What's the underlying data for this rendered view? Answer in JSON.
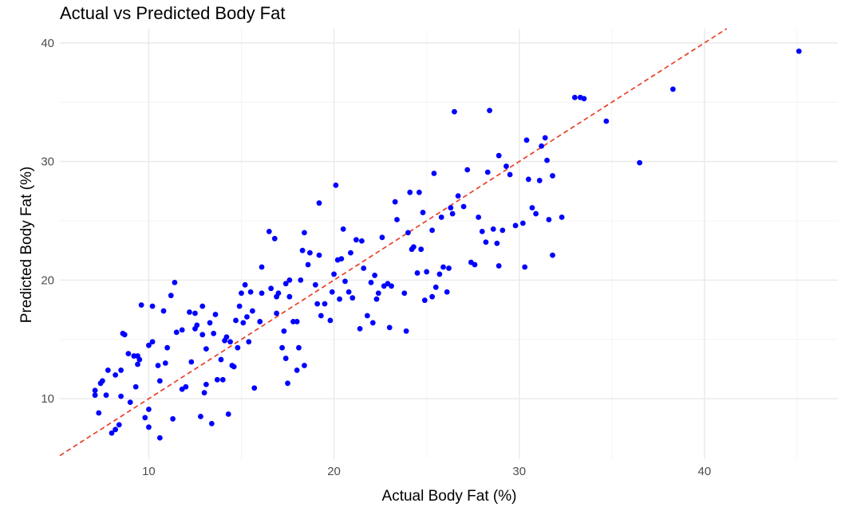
{
  "chart_data": {
    "type": "scatter",
    "title": "Actual vs Predicted Body Fat",
    "xlabel": "Actual Body Fat (%)",
    "ylabel": "Predicted Body Fat (%)",
    "xlim": [
      5.2,
      47.2
    ],
    "ylim": [
      4.9,
      41.2
    ],
    "xticks": [
      10,
      20,
      30,
      40
    ],
    "yticks": [
      10,
      20,
      30,
      40
    ],
    "grid": true,
    "point_color": "#0000ff",
    "reference_line": {
      "style": "dashed",
      "color": "#e8402a",
      "slope": 1,
      "intercept": 0
    },
    "points": [
      [
        7.1,
        10.3
      ],
      [
        7.1,
        10.7
      ],
      [
        7.3,
        8.8
      ],
      [
        7.4,
        11.3
      ],
      [
        7.5,
        11.5
      ],
      [
        7.7,
        10.3
      ],
      [
        7.8,
        12.4
      ],
      [
        8.0,
        7.1
      ],
      [
        8.2,
        7.4
      ],
      [
        8.2,
        12.0
      ],
      [
        8.4,
        7.8
      ],
      [
        8.5,
        12.4
      ],
      [
        8.5,
        10.2
      ],
      [
        8.6,
        15.5
      ],
      [
        8.7,
        15.4
      ],
      [
        8.9,
        13.8
      ],
      [
        9.0,
        9.7
      ],
      [
        9.2,
        13.6
      ],
      [
        9.3,
        11.0
      ],
      [
        9.4,
        12.9
      ],
      [
        9.4,
        13.6
      ],
      [
        9.5,
        13.3
      ],
      [
        9.6,
        17.9
      ],
      [
        9.8,
        8.4
      ],
      [
        10.0,
        14.5
      ],
      [
        10.0,
        9.1
      ],
      [
        10.0,
        7.6
      ],
      [
        10.2,
        14.8
      ],
      [
        10.2,
        17.8
      ],
      [
        10.5,
        12.8
      ],
      [
        10.6,
        6.7
      ],
      [
        10.6,
        11.5
      ],
      [
        10.8,
        17.4
      ],
      [
        10.9,
        13.0
      ],
      [
        11.0,
        14.3
      ],
      [
        11.2,
        18.7
      ],
      [
        11.3,
        8.3
      ],
      [
        11.4,
        19.8
      ],
      [
        11.5,
        15.6
      ],
      [
        11.8,
        10.8
      ],
      [
        11.8,
        15.8
      ],
      [
        12.0,
        11.0
      ],
      [
        12.2,
        17.3
      ],
      [
        12.3,
        13.1
      ],
      [
        12.5,
        15.9
      ],
      [
        12.5,
        17.2
      ],
      [
        12.6,
        16.2
      ],
      [
        12.8,
        8.5
      ],
      [
        12.9,
        17.8
      ],
      [
        12.9,
        15.4
      ],
      [
        13.0,
        10.5
      ],
      [
        13.1,
        14.2
      ],
      [
        13.1,
        11.2
      ],
      [
        13.3,
        16.4
      ],
      [
        13.4,
        7.9
      ],
      [
        13.5,
        15.5
      ],
      [
        13.6,
        17.1
      ],
      [
        13.7,
        11.6
      ],
      [
        13.9,
        13.3
      ],
      [
        14.0,
        11.6
      ],
      [
        14.1,
        14.9
      ],
      [
        14.2,
        15.2
      ],
      [
        14.3,
        8.7
      ],
      [
        14.4,
        14.8
      ],
      [
        14.5,
        12.8
      ],
      [
        14.6,
        12.7
      ],
      [
        14.7,
        16.6
      ],
      [
        14.8,
        14.3
      ],
      [
        14.9,
        17.8
      ],
      [
        15.0,
        18.9
      ],
      [
        15.1,
        16.4
      ],
      [
        15.2,
        19.6
      ],
      [
        15.3,
        16.9
      ],
      [
        15.4,
        14.8
      ],
      [
        15.5,
        19.0
      ],
      [
        15.6,
        17.4
      ],
      [
        15.7,
        10.9
      ],
      [
        16.0,
        16.5
      ],
      [
        16.1,
        18.9
      ],
      [
        16.1,
        21.1
      ],
      [
        16.5,
        24.1
      ],
      [
        16.6,
        19.3
      ],
      [
        16.8,
        23.5
      ],
      [
        16.9,
        17.2
      ],
      [
        16.9,
        18.6
      ],
      [
        17.0,
        18.9
      ],
      [
        17.2,
        14.3
      ],
      [
        17.3,
        15.7
      ],
      [
        17.4,
        19.7
      ],
      [
        17.4,
        13.4
      ],
      [
        17.5,
        11.3
      ],
      [
        17.6,
        20.0
      ],
      [
        17.6,
        18.6
      ],
      [
        17.8,
        16.5
      ],
      [
        18.0,
        12.4
      ],
      [
        18.0,
        16.5
      ],
      [
        18.1,
        14.3
      ],
      [
        18.2,
        20.0
      ],
      [
        18.3,
        22.5
      ],
      [
        18.4,
        24.0
      ],
      [
        18.4,
        12.8
      ],
      [
        18.6,
        21.3
      ],
      [
        18.7,
        22.3
      ],
      [
        19.0,
        19.6
      ],
      [
        19.1,
        18.0
      ],
      [
        19.2,
        26.5
      ],
      [
        19.2,
        22.1
      ],
      [
        19.3,
        17.0
      ],
      [
        19.5,
        18.0
      ],
      [
        19.8,
        16.6
      ],
      [
        19.9,
        19.0
      ],
      [
        20.0,
        20.5
      ],
      [
        20.1,
        28.0
      ],
      [
        20.2,
        21.7
      ],
      [
        20.3,
        18.4
      ],
      [
        20.4,
        21.8
      ],
      [
        20.5,
        24.3
      ],
      [
        20.6,
        19.9
      ],
      [
        20.8,
        19.0
      ],
      [
        20.9,
        22.3
      ],
      [
        21.0,
        18.5
      ],
      [
        21.2,
        23.4
      ],
      [
        21.4,
        15.9
      ],
      [
        21.5,
        23.3
      ],
      [
        21.6,
        21.0
      ],
      [
        21.8,
        17.0
      ],
      [
        22.0,
        19.8
      ],
      [
        22.1,
        16.4
      ],
      [
        22.2,
        20.4
      ],
      [
        22.3,
        18.4
      ],
      [
        22.4,
        18.9
      ],
      [
        22.6,
        23.6
      ],
      [
        22.7,
        19.5
      ],
      [
        22.9,
        19.7
      ],
      [
        23.0,
        16.0
      ],
      [
        23.1,
        19.5
      ],
      [
        23.3,
        26.6
      ],
      [
        23.4,
        25.1
      ],
      [
        23.8,
        18.9
      ],
      [
        23.9,
        15.7
      ],
      [
        24.0,
        24.0
      ],
      [
        24.1,
        27.4
      ],
      [
        24.2,
        22.6
      ],
      [
        24.3,
        22.8
      ],
      [
        24.5,
        20.6
      ],
      [
        24.6,
        27.4
      ],
      [
        24.7,
        22.6
      ],
      [
        24.8,
        25.7
      ],
      [
        24.9,
        18.3
      ],
      [
        25.0,
        20.7
      ],
      [
        25.3,
        18.6
      ],
      [
        25.3,
        24.2
      ],
      [
        25.4,
        29.0
      ],
      [
        25.5,
        19.4
      ],
      [
        25.7,
        20.5
      ],
      [
        25.8,
        25.3
      ],
      [
        25.9,
        21.1
      ],
      [
        26.1,
        19.0
      ],
      [
        26.2,
        21.0
      ],
      [
        26.3,
        26.1
      ],
      [
        26.4,
        25.6
      ],
      [
        26.5,
        34.2
      ],
      [
        26.7,
        27.1
      ],
      [
        27.0,
        26.2
      ],
      [
        27.2,
        29.3
      ],
      [
        27.4,
        21.5
      ],
      [
        27.6,
        21.3
      ],
      [
        27.8,
        25.3
      ],
      [
        28.0,
        24.1
      ],
      [
        28.2,
        23.2
      ],
      [
        28.3,
        29.1
      ],
      [
        28.4,
        34.3
      ],
      [
        28.6,
        24.3
      ],
      [
        28.8,
        23.1
      ],
      [
        28.9,
        30.5
      ],
      [
        28.9,
        21.2
      ],
      [
        29.1,
        24.2
      ],
      [
        29.3,
        29.6
      ],
      [
        29.5,
        28.9
      ],
      [
        29.8,
        24.6
      ],
      [
        30.2,
        24.8
      ],
      [
        30.3,
        21.1
      ],
      [
        30.4,
        31.8
      ],
      [
        30.5,
        28.5
      ],
      [
        30.7,
        26.1
      ],
      [
        30.9,
        25.6
      ],
      [
        31.1,
        28.4
      ],
      [
        31.2,
        31.3
      ],
      [
        31.4,
        32.0
      ],
      [
        31.5,
        30.1
      ],
      [
        31.6,
        25.1
      ],
      [
        31.8,
        22.1
      ],
      [
        31.8,
        28.8
      ],
      [
        32.3,
        25.3
      ],
      [
        33.0,
        35.4
      ],
      [
        33.3,
        35.4
      ],
      [
        33.5,
        35.3
      ],
      [
        34.7,
        33.4
      ],
      [
        36.5,
        29.9
      ],
      [
        38.3,
        36.1
      ],
      [
        45.1,
        39.3
      ]
    ]
  }
}
